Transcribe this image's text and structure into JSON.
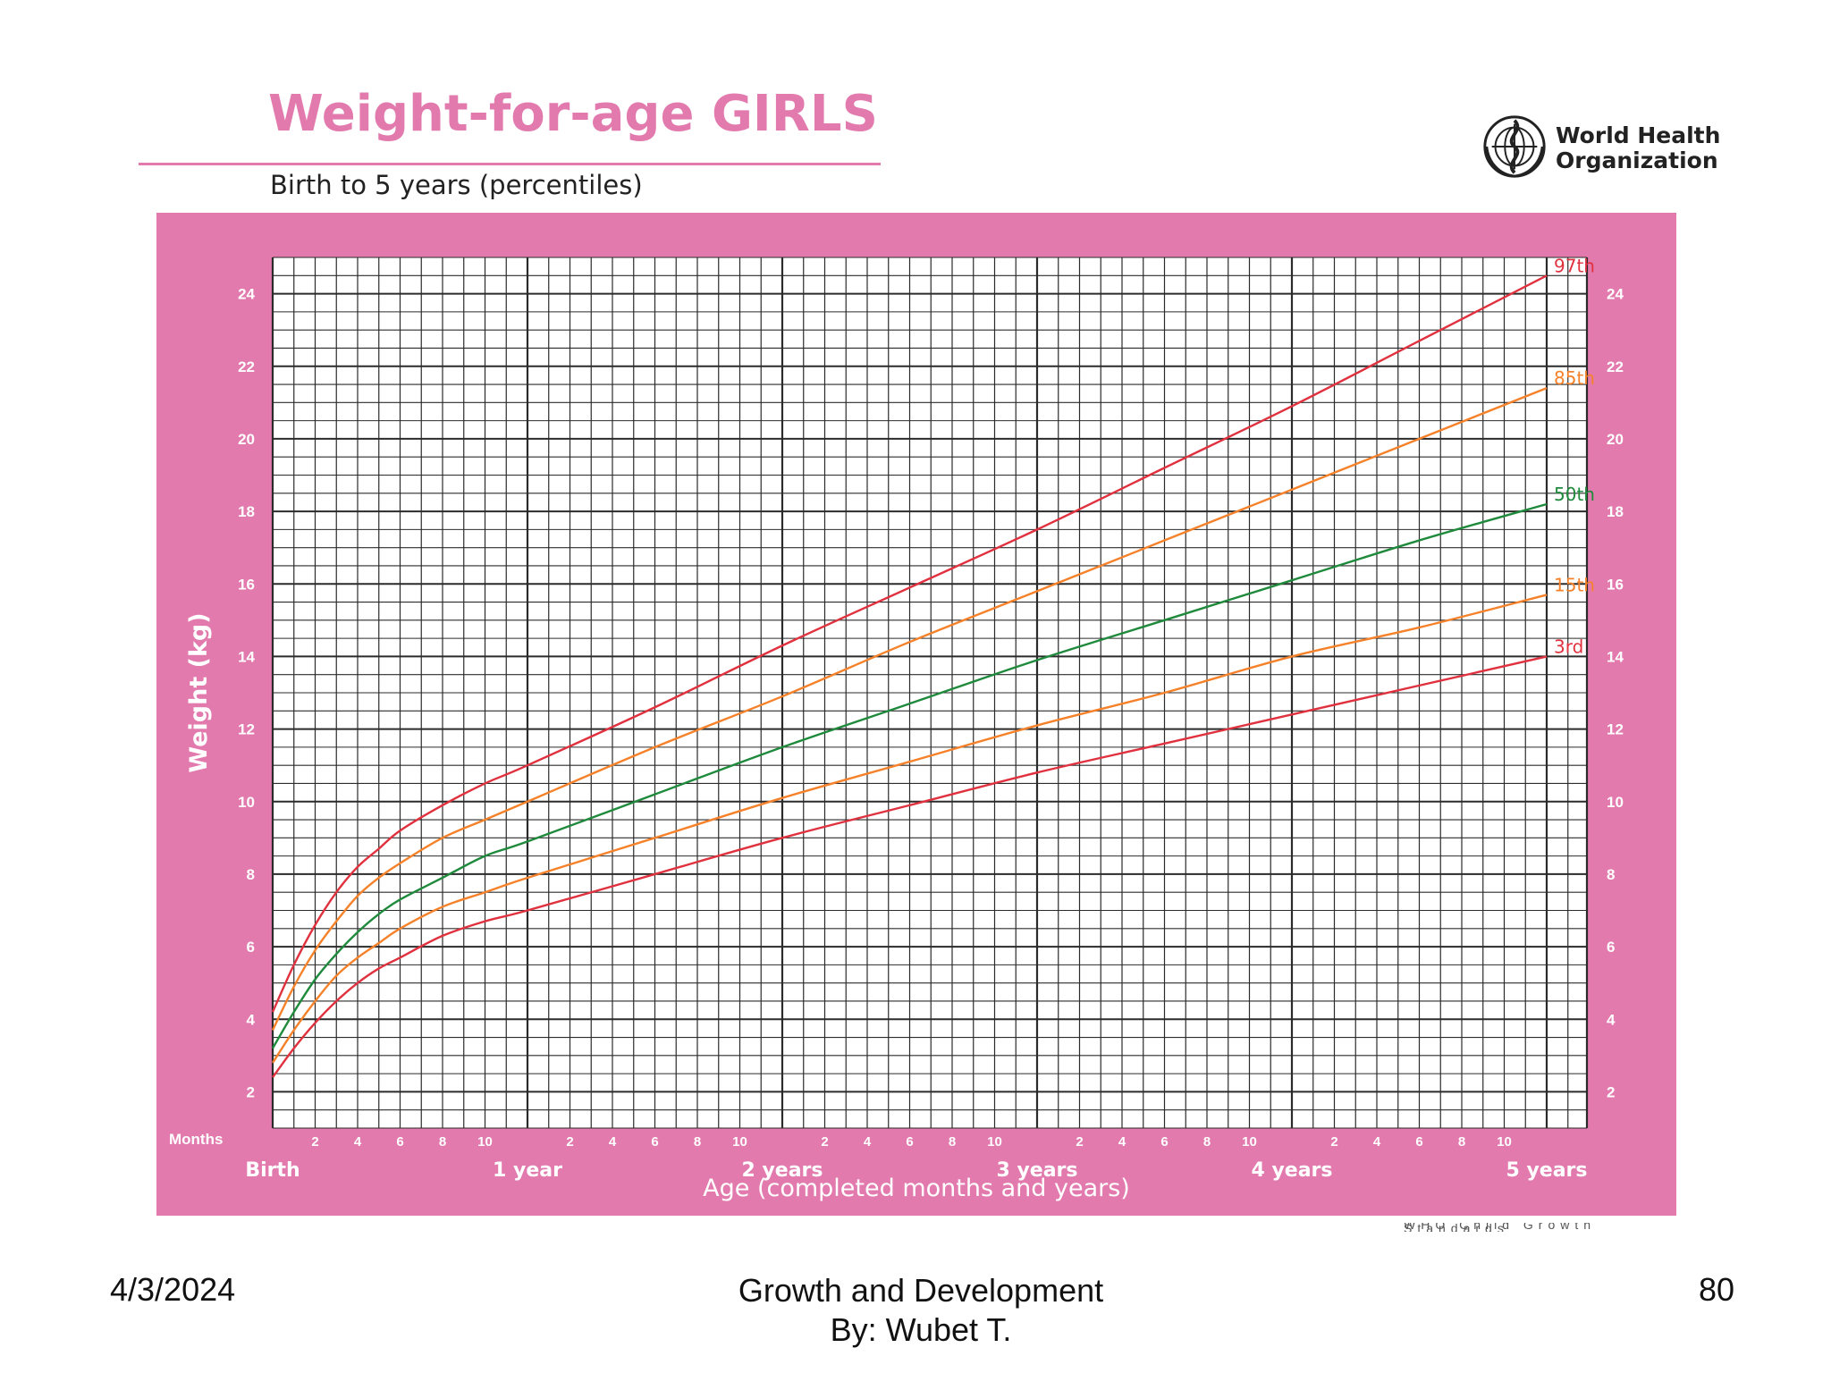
{
  "slide": {
    "title": "Weight-for-age GIRLS",
    "subtitle": "Birth to 5 years (percentiles)",
    "organization": "World Health\nOrganization",
    "footer_date": "4/3/2024",
    "footer_center": "Growth and Development\nBy: Wubet T.",
    "footer_page": "80",
    "watermark": "WHO Child Growth Standards"
  },
  "colors": {
    "frame": "#e27aae",
    "grid": "#2b2b2b",
    "p97": "#e0313f",
    "p85": "#f5822a",
    "p50": "#1f8a3c",
    "p15": "#f5822a",
    "p3": "#e0313f"
  },
  "chart_data": {
    "type": "line",
    "title": "Weight-for-age GIRLS",
    "subtitle": "Birth to 5 years (percentiles)",
    "ylabel": "Weight (kg)",
    "xlabel": "Age (completed months and years)",
    "months_label": "Months",
    "xlim": [
      0,
      62
    ],
    "ylim": [
      1,
      25
    ],
    "grid": true,
    "y_ticks": [
      2,
      4,
      6,
      8,
      10,
      12,
      14,
      16,
      18,
      20,
      22,
      24
    ],
    "month_ticks": [
      {
        "x": 2,
        "label": "2"
      },
      {
        "x": 4,
        "label": "4"
      },
      {
        "x": 6,
        "label": "6"
      },
      {
        "x": 8,
        "label": "8"
      },
      {
        "x": 10,
        "label": "10"
      },
      {
        "x": 14,
        "label": "2"
      },
      {
        "x": 16,
        "label": "4"
      },
      {
        "x": 18,
        "label": "6"
      },
      {
        "x": 20,
        "label": "8"
      },
      {
        "x": 22,
        "label": "10"
      },
      {
        "x": 26,
        "label": "2"
      },
      {
        "x": 28,
        "label": "4"
      },
      {
        "x": 30,
        "label": "6"
      },
      {
        "x": 32,
        "label": "8"
      },
      {
        "x": 34,
        "label": "10"
      },
      {
        "x": 38,
        "label": "2"
      },
      {
        "x": 40,
        "label": "4"
      },
      {
        "x": 42,
        "label": "6"
      },
      {
        "x": 44,
        "label": "8"
      },
      {
        "x": 46,
        "label": "10"
      },
      {
        "x": 50,
        "label": "2"
      },
      {
        "x": 52,
        "label": "4"
      },
      {
        "x": 54,
        "label": "6"
      },
      {
        "x": 56,
        "label": "8"
      },
      {
        "x": 58,
        "label": "10"
      }
    ],
    "year_ticks": [
      {
        "x": 0,
        "label": "Birth"
      },
      {
        "x": 12,
        "label": "1 year"
      },
      {
        "x": 24,
        "label": "2 years"
      },
      {
        "x": 36,
        "label": "3 years"
      },
      {
        "x": 48,
        "label": "4 years"
      },
      {
        "x": 60,
        "label": "5 years"
      }
    ],
    "x": [
      0,
      1,
      2,
      3,
      4,
      5,
      6,
      8,
      10,
      12,
      18,
      24,
      30,
      36,
      42,
      48,
      54,
      60
    ],
    "series": [
      {
        "name": "97th",
        "color": "#e0313f",
        "values": [
          4.2,
          5.5,
          6.6,
          7.5,
          8.2,
          8.7,
          9.2,
          9.9,
          10.5,
          11.0,
          12.6,
          14.3,
          15.9,
          17.5,
          19.2,
          20.9,
          22.7,
          24.5
        ]
      },
      {
        "name": "85th",
        "color": "#f5822a",
        "values": [
          3.7,
          4.9,
          5.9,
          6.7,
          7.4,
          7.9,
          8.3,
          9.0,
          9.5,
          10.0,
          11.5,
          12.9,
          14.4,
          15.8,
          17.2,
          18.6,
          20.0,
          21.4
        ]
      },
      {
        "name": "50th",
        "color": "#1f8a3c",
        "values": [
          3.2,
          4.2,
          5.1,
          5.8,
          6.4,
          6.9,
          7.3,
          7.9,
          8.5,
          8.9,
          10.2,
          11.5,
          12.7,
          13.9,
          15.0,
          16.1,
          17.2,
          18.2
        ]
      },
      {
        "name": "15th",
        "color": "#f5822a",
        "values": [
          2.8,
          3.7,
          4.5,
          5.2,
          5.7,
          6.1,
          6.5,
          7.1,
          7.5,
          7.9,
          9.0,
          10.1,
          11.1,
          12.1,
          13.0,
          14.0,
          14.8,
          15.7
        ]
      },
      {
        "name": "3rd",
        "color": "#e0313f",
        "values": [
          2.4,
          3.2,
          3.9,
          4.5,
          5.0,
          5.4,
          5.7,
          6.3,
          6.7,
          7.0,
          8.0,
          9.0,
          9.9,
          10.8,
          11.6,
          12.4,
          13.2,
          14.0
        ]
      }
    ]
  }
}
